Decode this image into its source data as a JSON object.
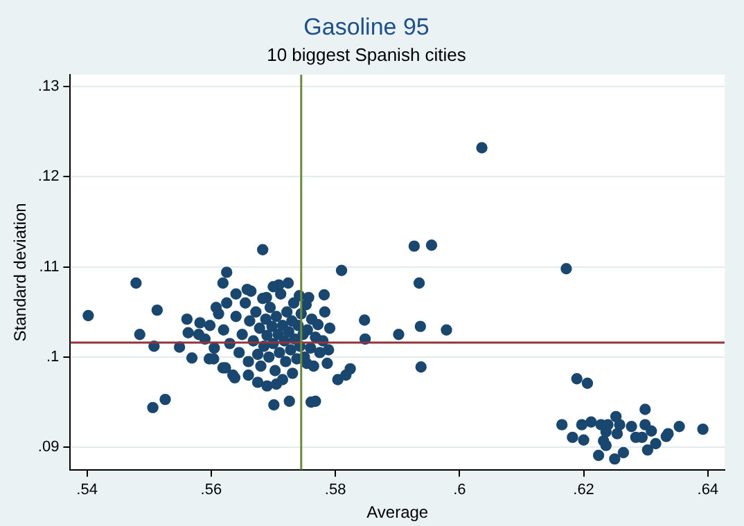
{
  "chart_data": {
    "type": "scatter",
    "title": "Gasoline 95",
    "subtitle": "10 biggest Spanish cities",
    "xlabel": "Average",
    "ylabel": "Standard deviation",
    "xlim": [
      0.5373,
      0.6427
    ],
    "ylim": [
      0.0875,
      0.1313
    ],
    "xticks": [
      {
        "value": 0.54,
        "label": ".54"
      },
      {
        "value": 0.56,
        "label": ".56"
      },
      {
        "value": 0.58,
        "label": ".58"
      },
      {
        "value": 0.6,
        "label": ".6"
      },
      {
        "value": 0.62,
        "label": ".62"
      },
      {
        "value": 0.64,
        "label": ".64"
      }
    ],
    "yticks": [
      {
        "value": 0.09,
        "label": ".09"
      },
      {
        "value": 0.1,
        "label": ".1"
      },
      {
        "value": 0.11,
        "label": ".11"
      },
      {
        "value": 0.12,
        "label": ".12"
      },
      {
        "value": 0.13,
        "label": ".13"
      }
    ],
    "grid": "y",
    "legend": false,
    "marker": "circle",
    "ref_lines": [
      {
        "axis": "y",
        "value": 0.1016,
        "label": null,
        "color": "#90353b"
      },
      {
        "axis": "x",
        "value": 0.5745,
        "label": null,
        "color": "#6b8a3a"
      }
    ],
    "series": [
      {
        "color": "#1a476f",
        "x": [
          0.5402,
          0.5479,
          0.5513,
          0.5485,
          0.5508,
          0.5549,
          0.5569,
          0.5561,
          0.5506,
          0.5526,
          0.5683,
          0.5625,
          0.5619,
          0.5664,
          0.5597,
          0.5608,
          0.5582,
          0.5563,
          0.5619,
          0.5638,
          0.5675,
          0.581,
          0.5782,
          0.5847,
          0.5848,
          0.5789,
          0.5787,
          0.5824,
          0.5804,
          0.5817,
          0.5701,
          0.5726,
          0.5761,
          0.5768,
          0.5724,
          0.5709,
          0.5689,
          0.5742,
          0.5757,
          0.5783,
          0.5791,
          0.5604,
          0.5623,
          0.5705,
          0.5731,
          0.5754,
          0.6036,
          0.5927,
          0.5955,
          0.5935,
          0.6172,
          0.5902,
          0.5937,
          0.5979,
          0.5938,
          0.6189,
          0.6206,
          0.6165,
          0.6182,
          0.6197,
          0.62,
          0.6212,
          0.6224,
          0.6228,
          0.6232,
          0.6236,
          0.6239,
          0.6236,
          0.625,
          0.6252,
          0.6254,
          0.6258,
          0.6264,
          0.6277,
          0.6284,
          0.6294,
          0.6299,
          0.6299,
          0.6303,
          0.6309,
          0.6316,
          0.6333,
          0.6336,
          0.6354,
          0.6392,
          0.562,
          0.563,
          0.564,
          0.5645,
          0.565,
          0.5655,
          0.566,
          0.5662,
          0.5668,
          0.5672,
          0.5675,
          0.5678,
          0.568,
          0.5683,
          0.5685,
          0.5688,
          0.569,
          0.5693,
          0.5695,
          0.5698,
          0.57,
          0.5703,
          0.5705,
          0.5708,
          0.571,
          0.5712,
          0.5715,
          0.5718,
          0.572,
          0.5722,
          0.5725,
          0.5728,
          0.573,
          0.5733,
          0.5735,
          0.5738,
          0.574,
          0.5743,
          0.5745,
          0.5748,
          0.575,
          0.5753,
          0.5755,
          0.576,
          0.5762,
          0.5765,
          0.5768,
          0.5772,
          0.5775,
          0.578,
          0.5612,
          0.5605,
          0.5598,
          0.559,
          0.5635,
          0.5658,
          0.57,
          0.5715,
          0.569,
          0.566,
          0.564,
          0.5625,
          0.558
        ],
        "values": [
          0.1046,
          0.1082,
          0.1052,
          0.1025,
          0.1012,
          0.1011,
          0.0999,
          0.1042,
          0.0944,
          0.0953,
          0.1119,
          0.1094,
          0.1082,
          0.1073,
          0.0998,
          0.1055,
          0.1038,
          0.1027,
          0.0988,
          0.0977,
          0.0972,
          0.1096,
          0.1069,
          0.1041,
          0.102,
          0.1008,
          0.0993,
          0.0987,
          0.0975,
          0.098,
          0.0947,
          0.0951,
          0.095,
          0.0951,
          0.1082,
          0.108,
          0.1066,
          0.1068,
          0.1066,
          0.105,
          0.1032,
          0.0998,
          0.0988,
          0.097,
          0.0982,
          0.0993,
          0.1232,
          0.1123,
          0.1124,
          0.1082,
          0.1098,
          0.1025,
          0.1034,
          0.103,
          0.0989,
          0.0976,
          0.0971,
          0.0925,
          0.0911,
          0.0925,
          0.0908,
          0.0928,
          0.0891,
          0.0925,
          0.0907,
          0.0917,
          0.0925,
          0.0902,
          0.0887,
          0.0934,
          0.0915,
          0.0925,
          0.0894,
          0.0923,
          0.0911,
          0.0911,
          0.0942,
          0.0925,
          0.0897,
          0.0918,
          0.0904,
          0.0912,
          0.0915,
          0.0923,
          0.092,
          0.103,
          0.1015,
          0.1045,
          0.1005,
          0.1025,
          0.106,
          0.0995,
          0.104,
          0.1018,
          0.105,
          0.1003,
          0.1032,
          0.099,
          0.1065,
          0.1012,
          0.1042,
          0.1024,
          0.1,
          0.1055,
          0.1034,
          0.1015,
          0.0985,
          0.1045,
          0.1025,
          0.1005,
          0.107,
          0.1035,
          0.1018,
          0.0995,
          0.105,
          0.1028,
          0.1008,
          0.104,
          0.106,
          0.102,
          0.0998,
          0.1035,
          0.1012,
          0.1048,
          0.1025,
          0.1,
          0.1058,
          0.103,
          0.101,
          0.1042,
          0.099,
          0.1022,
          0.1036,
          0.1005,
          0.1018,
          0.1048,
          0.101,
          0.1035,
          0.102,
          0.098,
          0.1075,
          0.1078,
          0.0975,
          0.0968,
          0.098,
          0.107,
          0.106,
          0.1025
        ]
      }
    ]
  }
}
